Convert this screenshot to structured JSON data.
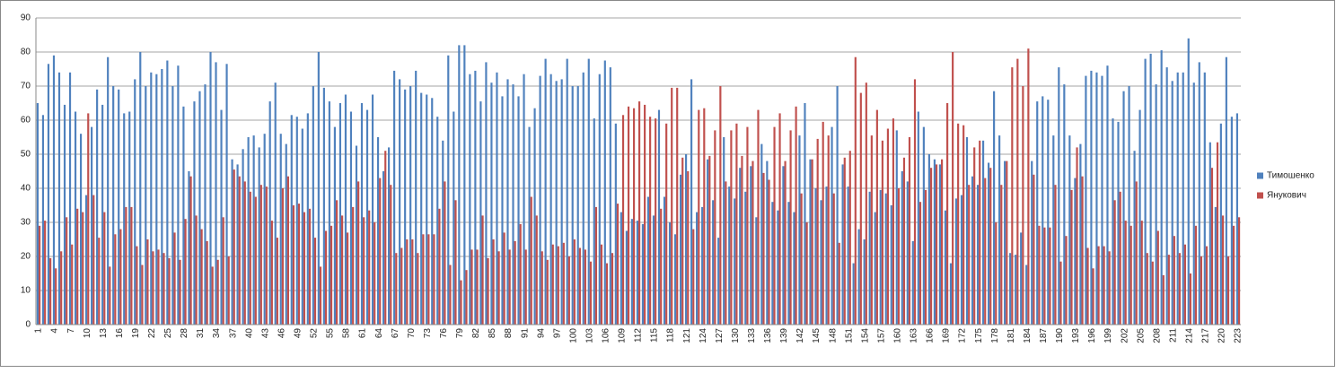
{
  "chart_data": {
    "type": "bar",
    "categories": [
      "1",
      null,
      null,
      "4",
      null,
      null,
      "7",
      null,
      null,
      "10",
      null,
      null,
      "13",
      null,
      null,
      "16",
      null,
      null,
      "19",
      null,
      null,
      "22",
      null,
      null,
      "25",
      null,
      null,
      "28",
      null,
      null,
      "31",
      null,
      null,
      "34",
      null,
      null,
      "37",
      null,
      null,
      "40",
      null,
      null,
      "43",
      null,
      null,
      "46",
      null,
      null,
      "49",
      null,
      null,
      "52",
      null,
      null,
      "55",
      null,
      null,
      "58",
      null,
      null,
      "61",
      null,
      null,
      "64",
      null,
      null,
      "67",
      null,
      null,
      "70",
      null,
      null,
      "73",
      null,
      null,
      "76",
      null,
      null,
      "79",
      null,
      null,
      "82",
      null,
      null,
      "85",
      null,
      null,
      "88",
      null,
      null,
      "91",
      null,
      null,
      "94",
      null,
      null,
      "97",
      null,
      null,
      "100",
      null,
      null,
      "103",
      null,
      null,
      "106",
      null,
      null,
      "109",
      null,
      null,
      "112",
      null,
      null,
      "115",
      null,
      null,
      "118",
      null,
      null,
      "121",
      null,
      null,
      "124",
      null,
      null,
      "127",
      null,
      null,
      "130",
      null,
      null,
      "133",
      null,
      null,
      "136",
      null,
      null,
      "139",
      null,
      null,
      "142",
      null,
      null,
      "145",
      null,
      null,
      "148",
      null,
      null,
      "151",
      null,
      null,
      "154",
      null,
      null,
      "157",
      null,
      null,
      "160",
      null,
      null,
      "163",
      null,
      null,
      "166",
      null,
      null,
      "169",
      null,
      null,
      "172",
      null,
      null,
      "175",
      null,
      null,
      "178",
      null,
      null,
      "181",
      null,
      null,
      "184",
      null,
      null,
      "187",
      null,
      null,
      "190",
      null,
      null,
      "193",
      null,
      null,
      "196",
      null,
      null,
      "199",
      null,
      null,
      "202",
      null,
      null,
      "205",
      null,
      null,
      "208",
      null,
      null,
      "211",
      null,
      null,
      "214",
      null,
      null,
      "217",
      null,
      null,
      "220",
      null,
      null,
      "223"
    ],
    "series": [
      {
        "name": "Тимошенко",
        "color": "#4f81bd",
        "values": [
          65,
          61.5,
          76.5,
          79,
          74,
          64.5,
          74,
          62.5,
          56,
          38,
          58,
          69,
          64.5,
          78.5,
          70,
          69,
          62,
          62.5,
          72,
          80,
          70,
          74,
          73.5,
          75,
          77.5,
          70,
          76,
          64,
          45,
          65.5,
          68.5,
          70.5,
          80,
          77,
          63,
          76.5,
          48.5,
          47,
          51.5,
          55,
          55.5,
          52,
          56,
          65.5,
          71,
          56,
          53,
          61.5,
          61,
          57.5,
          62,
          70,
          80,
          69.5,
          65.5,
          58,
          65,
          67.5,
          62.5,
          52.5,
          65,
          63,
          67.5,
          55,
          45,
          52,
          74.5,
          72,
          69,
          70,
          74.5,
          68,
          67.5,
          66.5,
          61,
          54,
          79,
          62.5,
          82,
          82,
          73.5,
          74.5,
          65.5,
          77,
          71,
          74,
          67,
          72,
          70.5,
          67,
          73.5,
          58,
          63.5,
          73,
          78,
          73.5,
          71.5,
          72,
          78,
          70,
          70,
          74,
          78,
          60.5,
          73.5,
          77.5,
          75.5,
          59,
          33,
          27.5,
          31,
          30.5,
          29.5,
          37.5,
          32,
          63,
          37.5,
          30,
          26.5,
          44,
          50,
          72,
          33,
          34.5,
          48.5,
          36.5,
          25.5,
          55,
          40.5,
          37,
          46,
          39,
          46.5,
          31.5,
          53,
          48,
          36,
          33.5,
          46.5,
          36,
          33,
          55.5,
          65,
          48.5,
          40,
          36.5,
          40.5,
          58,
          70,
          47,
          40.5,
          18,
          28,
          25,
          39,
          33,
          39.5,
          38.5,
          35,
          57,
          45,
          42,
          24.5,
          62.5,
          58,
          50,
          48.5,
          47,
          33.5,
          18,
          37,
          38,
          55,
          43.5,
          41,
          54,
          47.5,
          68.5,
          55.5,
          48,
          21,
          20.5,
          27,
          17.5,
          48,
          65.5,
          67,
          66,
          55.5,
          75.5,
          70.5,
          55.5,
          43,
          53,
          73,
          74.5,
          74,
          73,
          76,
          60.5,
          59.5,
          68.5,
          70,
          51,
          63,
          78,
          79.5,
          70.5,
          80.5,
          75.5,
          71.5,
          74,
          74,
          84,
          71,
          77,
          74,
          53.5,
          34.5,
          59,
          78.5,
          61,
          62
        ]
      },
      {
        "name": "Янукович",
        "color": "#c0504d",
        "values": [
          29,
          30.5,
          19.5,
          16.5,
          21.5,
          31.5,
          23.5,
          34,
          33,
          62,
          38,
          25.5,
          33,
          17,
          26.5,
          28,
          34.5,
          34.5,
          23,
          17.5,
          25,
          21.5,
          22,
          21,
          19.5,
          27,
          19,
          31,
          43.5,
          32,
          28,
          24.5,
          17,
          19,
          31.5,
          20,
          45.5,
          43.5,
          42,
          39,
          37.5,
          41,
          40.5,
          30.5,
          25.5,
          40,
          43.5,
          35,
          35.5,
          33,
          34,
          25.5,
          17,
          27.5,
          29,
          36.5,
          32,
          27,
          34.5,
          42,
          31.5,
          33.5,
          30,
          43,
          51,
          41,
          21,
          22.5,
          25,
          25,
          21,
          26.5,
          26.5,
          26.5,
          34,
          42,
          17.5,
          36.5,
          13,
          16,
          22,
          22,
          32,
          19.5,
          25,
          21.5,
          27,
          22,
          24.5,
          29.5,
          22,
          37.5,
          32,
          21.5,
          19,
          23.5,
          23,
          24,
          20,
          25,
          22.5,
          22,
          18.5,
          34.5,
          23.5,
          18,
          21,
          35.5,
          61.5,
          64,
          63.5,
          65.5,
          64.5,
          61,
          60.5,
          34,
          59,
          69.5,
          69.5,
          49,
          45,
          28,
          63,
          63.5,
          49.5,
          57,
          70,
          42,
          57,
          59,
          49.5,
          58,
          48,
          63,
          44.5,
          42.5,
          58,
          62,
          48,
          57,
          64,
          38.5,
          30,
          48.5,
          54.5,
          59.5,
          55.5,
          38.5,
          24,
          49,
          51,
          78.5,
          68,
          71,
          55.5,
          63,
          54,
          57.5,
          60.5,
          40,
          49,
          55,
          72,
          36,
          39.5,
          46,
          47,
          48.5,
          65,
          80,
          59,
          58.5,
          41,
          52,
          54,
          43,
          46,
          30,
          41,
          48,
          75.5,
          78,
          70,
          81,
          44,
          29,
          28.5,
          28.5,
          41,
          18.5,
          26,
          39.5,
          52,
          43.5,
          22.5,
          16.5,
          23,
          23,
          21.5,
          36.5,
          39,
          30.5,
          29,
          42,
          30.5,
          21,
          18.5,
          27.5,
          14.5,
          20.5,
          26,
          21,
          23.5,
          15,
          29,
          20,
          23,
          46,
          53.5,
          32,
          20,
          29,
          31.5
        ]
      }
    ],
    "ylim": [
      0,
      90
    ],
    "yticks": [
      0,
      10,
      20,
      30,
      40,
      50,
      60,
      70,
      80,
      90
    ],
    "grid": true,
    "legend": "right"
  }
}
